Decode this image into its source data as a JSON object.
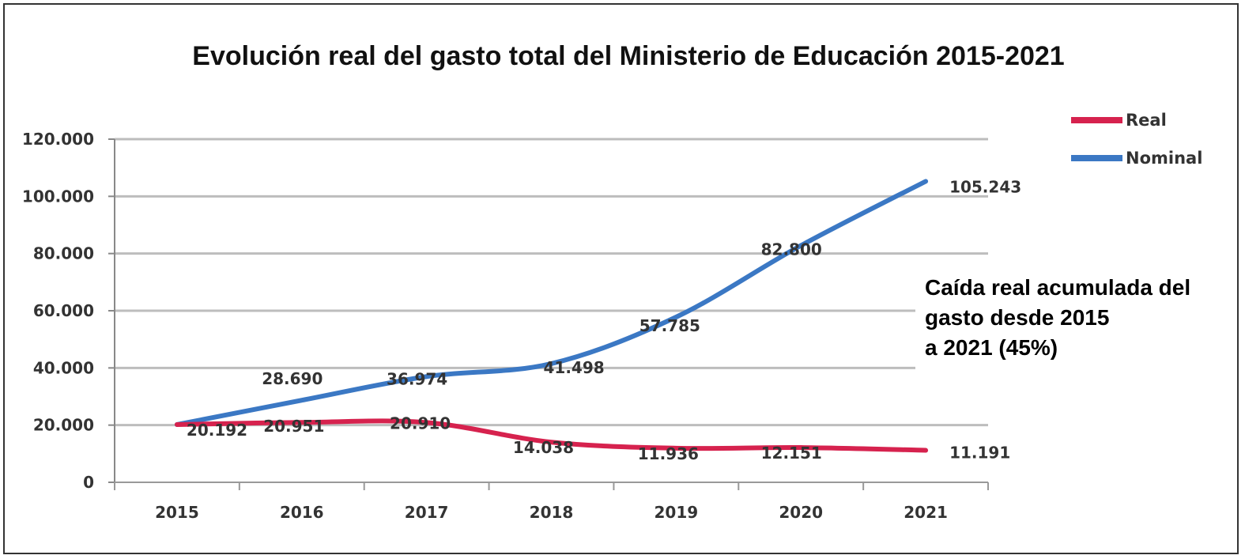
{
  "chart_data": {
    "type": "line",
    "title": "Evolución real del gasto total del Ministerio de Educación 2015-2021",
    "xlabel": "",
    "ylabel": "",
    "categories": [
      "2015",
      "2016",
      "2017",
      "2018",
      "2019",
      "2020",
      "2021"
    ],
    "ylim": [
      0,
      120000
    ],
    "yticks": [
      "0",
      "20.000",
      "40.000",
      "60.000",
      "80.000",
      "100.000",
      "120.000"
    ],
    "yticks_values": [
      0,
      20000,
      40000,
      60000,
      80000,
      100000,
      120000
    ],
    "grid": true,
    "legend_position": "top-right",
    "series": [
      {
        "name": "Real",
        "color": "#d6224e",
        "values": [
          20192,
          20951,
          20910,
          14038,
          11936,
          12151,
          11191
        ],
        "labels": [
          "20.192",
          "20.951",
          "20.910",
          "14.038",
          "11.936",
          "12.151",
          "11.191"
        ]
      },
      {
        "name": "Nominal",
        "color": "#3b78c4",
        "values": [
          20192,
          28690,
          36974,
          41498,
          57785,
          82800,
          105243
        ],
        "labels": [
          "",
          "28.690",
          "36.974",
          "41.498",
          "57.785",
          "82.800",
          "105.243"
        ]
      }
    ],
    "annotation": [
      "Caída real acumulada del",
      "gasto desde 2015",
      "a 2021 (45%)"
    ]
  }
}
